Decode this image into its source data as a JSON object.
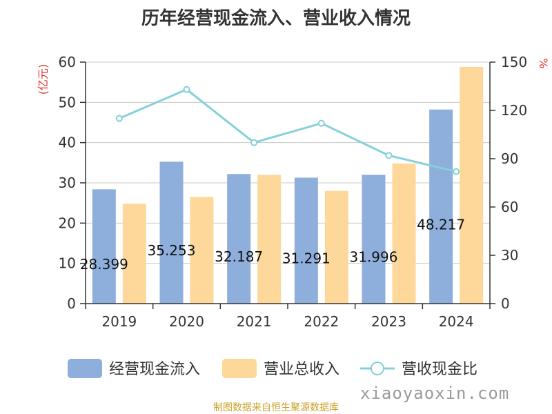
{
  "title": "历年经营现金流入、营业收入情况",
  "source": "制图数据来自恒生聚源数据库",
  "watermark": "xiaoyaoxin.com",
  "chart_data": {
    "type": "bar",
    "categories": [
      "2019",
      "2020",
      "2021",
      "2022",
      "2023",
      "2024"
    ],
    "series": [
      {
        "name": "经营现金流入",
        "type": "bar",
        "axis": "left",
        "color": "#8eaedb",
        "values": [
          28.399,
          35.253,
          32.187,
          31.291,
          31.996,
          48.217
        ],
        "labels": [
          "28.399",
          "35.253",
          "32.187",
          "31.291",
          "31.996",
          "48.217"
        ]
      },
      {
        "name": "营业总收入",
        "type": "bar",
        "axis": "left",
        "color": "#fdd89a",
        "values": [
          24.8,
          26.5,
          32.0,
          28.0,
          34.8,
          58.8
        ]
      },
      {
        "name": "营收现金比",
        "type": "line",
        "axis": "right",
        "color": "#85d1d8",
        "values": [
          115,
          133,
          100,
          112,
          92,
          82
        ]
      }
    ],
    "y_left": {
      "label": "(亿元)",
      "min": 0,
      "max": 60,
      "ticks": [
        0,
        10,
        20,
        30,
        40,
        50,
        60
      ]
    },
    "y_right": {
      "label": "%",
      "min": 0,
      "max": 150,
      "ticks": [
        0,
        30,
        60,
        90,
        120,
        150
      ]
    },
    "grid": true,
    "legend_position": "bottom"
  }
}
